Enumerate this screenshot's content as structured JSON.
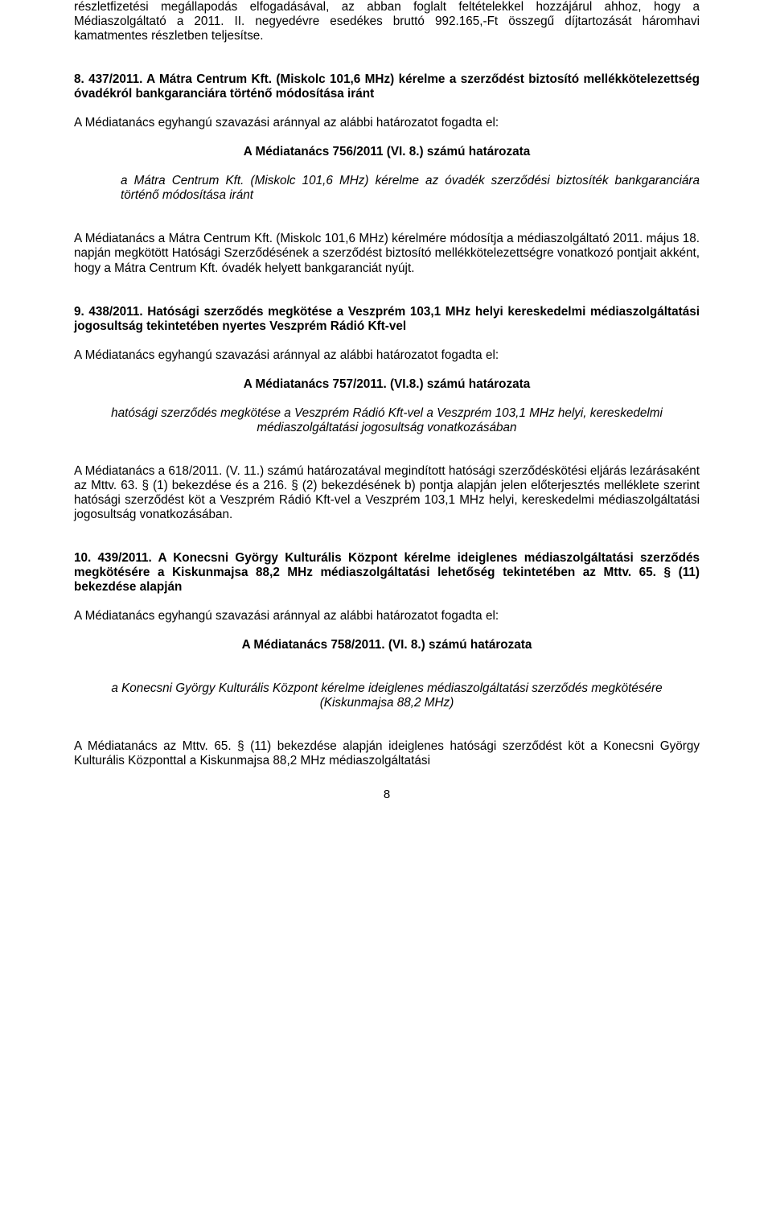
{
  "p1": "részletfizetési megállapodás elfogadásával, az abban foglalt feltételekkel hozzájárul ahhoz, hogy a Médiaszolgáltató a 2011. II. negyedévre esedékes bruttó 992.165,-Ft összegű díjtartozását háromhavi kamatmentes részletben teljesítse.",
  "h8": "8. 437/2011. A Mátra Centrum Kft. (Miskolc 101,6 MHz) kérelme a szerződést biztosító mellékkötelezettség óvadékról bankgaranciára történő módosítása iránt",
  "vote1": "A Médiatanács egyhangú szavazási aránnyal az alábbi határozatot fogadta el:",
  "res1": "A Médiatanács 756/2011 (VI. 8.) számú határozata",
  "res1desc": "a Mátra Centrum Kft. (Miskolc  101,6 MHz) kérelme az óvadék szerződési biztosíték bankgaranciára történő módosítása iránt",
  "p2": "A Médiatanács a Mátra Centrum Kft. (Miskolc 101,6 MHz) kérelmére módosítja a médiaszolgáltató 2011. május 18. napján megkötött Hatósági Szerződésének a szerződést biztosító mellékkötelezettségre vonatkozó pontjait akként, hogy a Mátra Centrum Kft. óvadék helyett bankgaranciát nyújt.",
  "h9": "9. 438/2011. Hatósági szerződés megkötése a Veszprém 103,1 MHz helyi kereskedelmi médiaszolgáltatási jogosultság tekintetében nyertes Veszprém Rádió Kft-vel",
  "vote2": "A Médiatanács egyhangú szavazási aránnyal az alábbi határozatot fogadta el:",
  "res2": "A Médiatanács 757/2011. (VI.8.) számú határozata",
  "res2desc": "hatósági szerződés megkötése  a Veszprém Rádió Kft-vel a Veszprém 103,1 MHz helyi, kereskedelmi médiaszolgáltatási jogosultság vonatkozásában",
  "p3": "A Médiatanács a 618/2011. (V. 11.) számú határozatával megindított hatósági szerződéskötési eljárás lezárásaként az Mttv. 63. § (1) bekezdése és a 216. § (2) bekezdésének b) pontja alapján jelen előterjesztés melléklete szerint hatósági szerződést köt a Veszprém Rádió Kft-vel a Veszprém 103,1 MHz helyi, kereskedelmi médiaszolgáltatási jogosultság vonatkozásában.",
  "h10": "10. 439/2011. A Konecsni György Kulturális Központ kérelme ideiglenes médiaszolgáltatási szerződés megkötésére a Kiskunmajsa 88,2 MHz médiaszolgáltatási lehetőség tekintetében az Mttv. 65. § (11) bekezdése alapján",
  "vote3": "A Médiatanács egyhangú szavazási aránnyal az alábbi határozatot fogadta el:",
  "res3": "A Médiatanács 758/2011. (VI. 8.) számú határozata",
  "res3desc": "a Konecsni György Kulturális Központ kérelme ideiglenes médiaszolgáltatási szerződés megkötésére (Kiskunmajsa 88,2 MHz)",
  "p4": "A Médiatanács az Mttv. 65. § (11) bekezdése alapján ideiglenes hatósági szerződést köt a Konecsni György Kulturális Központtal a Kiskunmajsa 88,2 MHz médiaszolgáltatási",
  "pageNum": "8"
}
